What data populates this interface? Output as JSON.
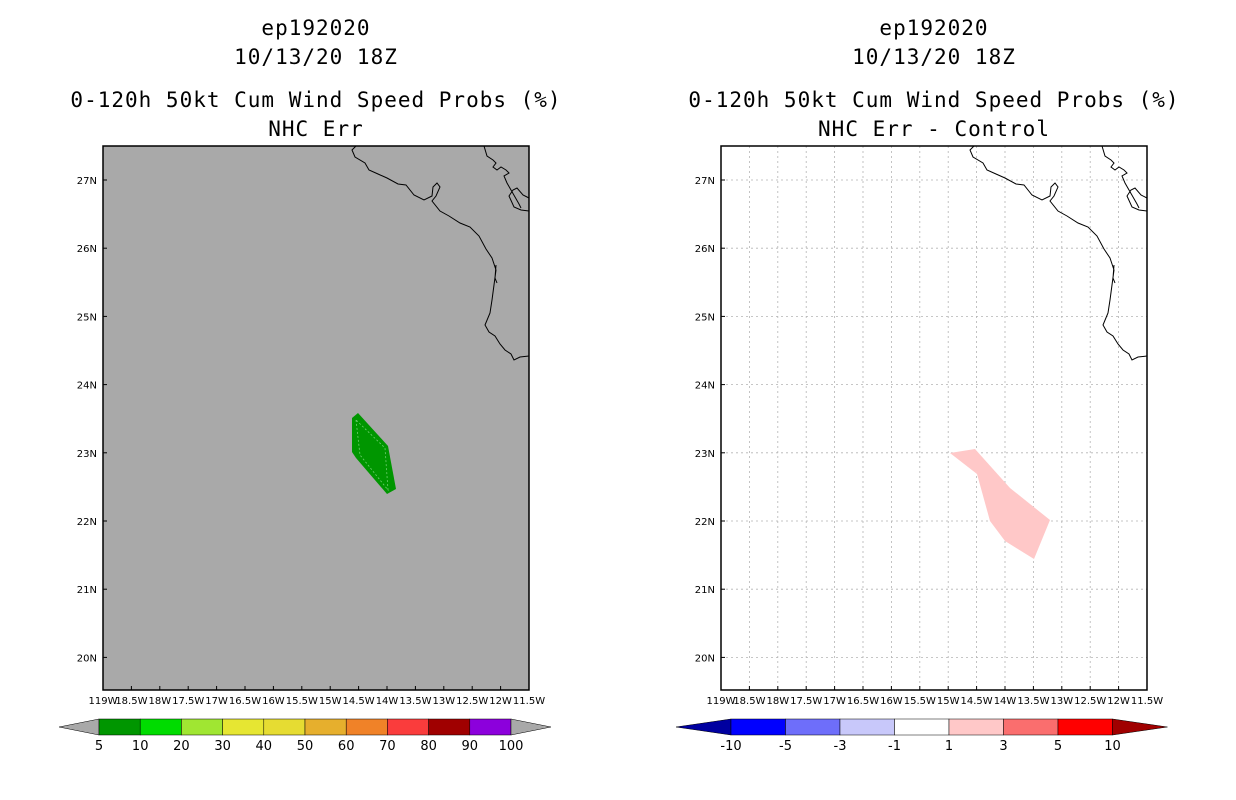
{
  "left_panel": {
    "storm": "ep192020",
    "datetime": "10/13/20 18Z",
    "product": "0-120h 50kt Cum Wind Speed Probs (%)",
    "subtitle": "NHC Err",
    "background_color": "#a9a9a9",
    "colorbar": {
      "labels": [
        "5",
        "10",
        "20",
        "30",
        "40",
        "50",
        "60",
        "70",
        "80",
        "90",
        "100"
      ],
      "colors": [
        "#009600",
        "#00dc00",
        "#a0e632",
        "#e6e632",
        "#e6dc32",
        "#e6af2d",
        "#f08228",
        "#fa3c3c",
        "#a00000",
        "#8c00dc"
      ]
    }
  },
  "right_panel": {
    "storm": "ep192020",
    "datetime": "10/13/20 18Z",
    "product": "0-120h 50kt Cum Wind Speed Probs (%)",
    "subtitle": "NHC Err - Control",
    "background_color": "#ffffff",
    "colorbar": {
      "labels": [
        "-10",
        "-5",
        "-3",
        "-1",
        "1",
        "3",
        "5",
        "10"
      ],
      "colors": [
        "#0000a0",
        "#0000ff",
        "#6e6efa",
        "#c8c8fa",
        "#ffffff",
        "#ffc8c8",
        "#fa6e6e",
        "#ff0000",
        "#a00000"
      ]
    }
  },
  "axes": {
    "lat_labels": [
      "27N",
      "26N",
      "25N",
      "24N",
      "23N",
      "22N",
      "21N",
      "20N"
    ],
    "lon_labels": [
      "119W",
      "18.5W",
      "18W",
      "17.5W",
      "17W",
      "16.5W",
      "16W",
      "15.5W",
      "15W",
      "14.5W",
      "14W",
      "13.5W",
      "13W",
      "12.5W",
      "12W",
      "11.5W"
    ]
  },
  "colors": {
    "prob_fill": "#009600",
    "diff_fill": "#ffc8c8",
    "coast": "#000000",
    "grid": "#b4b4b4"
  }
}
